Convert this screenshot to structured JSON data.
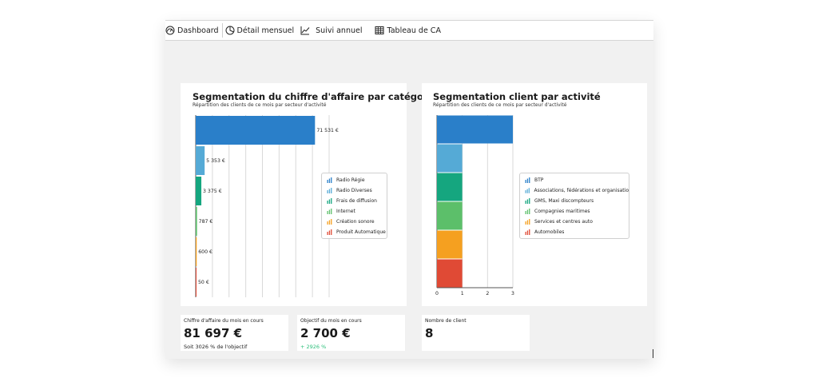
{
  "toolbar": {
    "items": [
      {
        "label": "Dashboard",
        "icon": "dashboard-gauge-icon"
      },
      {
        "label": "Détail mensuel",
        "icon": "pie-chart-icon"
      },
      {
        "label": "Suivi annuel",
        "icon": "line-chart-icon"
      },
      {
        "label": "Tableau de CA",
        "icon": "table-icon"
      }
    ]
  },
  "charts": {
    "categorie": {
      "title": "Segmentation du chiffre d'affaire par catégorie",
      "subtitle": "Répartition des clients de ce mois par secteur d'activité"
    },
    "activite": {
      "title": "Segmentation client par activité",
      "subtitle": "Répartition des clients de ce mois par secteur d'activité"
    }
  },
  "chart_data": [
    {
      "type": "bar",
      "orientation": "horizontal",
      "title": "Segmentation du chiffre d'affaire par catégorie",
      "subtitle": "Répartition des clients de ce mois par secteur d'activité",
      "categories": [
        "Radio Régie",
        "Radio Diverses",
        "Frais de diffusion",
        "Internet",
        "Création sonore",
        "Produit Automatique"
      ],
      "values": [
        71531,
        5353,
        3375,
        787,
        600,
        50
      ],
      "data_labels": [
        "71 531 €",
        "5 353 €",
        "3 375 €",
        "787 €",
        "600 €",
        "50 €"
      ],
      "colors": [
        "#2a7fc9",
        "#55aad6",
        "#15a67f",
        "#5cbf6a",
        "#f5a020",
        "#e04a35"
      ],
      "xlim": [
        0,
        80000
      ],
      "grid": true,
      "legend": "right"
    },
    {
      "type": "bar",
      "orientation": "horizontal",
      "title": "Segmentation client par activité",
      "subtitle": "Répartition des clients de ce mois par secteur d'activité",
      "categories": [
        "BTP",
        "Associations, fédérations et organisatio",
        "GMS, Maxi discompteurs",
        "Compagnies maritimes",
        "Services et centres auto",
        "Automobiles"
      ],
      "values": [
        3,
        1,
        1,
        1,
        1,
        1
      ],
      "colors": [
        "#2a7fc9",
        "#55aad6",
        "#15a67f",
        "#5cbf6a",
        "#f5a020",
        "#e04a35"
      ],
      "xlim": [
        0,
        3
      ],
      "xticks": [
        "0",
        "1",
        "2",
        "3"
      ],
      "grid": true,
      "legend": "right"
    }
  ],
  "kpis": {
    "ca": {
      "label": "Chiffre d'affaire du mois en cours",
      "value": "81 697 €",
      "note": "Soit 3026 % de l'objectif"
    },
    "objectif": {
      "label": "Objectif du mois en cours",
      "value": "2 700 €",
      "note": "+ 2926 %"
    },
    "clients": {
      "label": "Nombre de client",
      "value": "8"
    }
  }
}
